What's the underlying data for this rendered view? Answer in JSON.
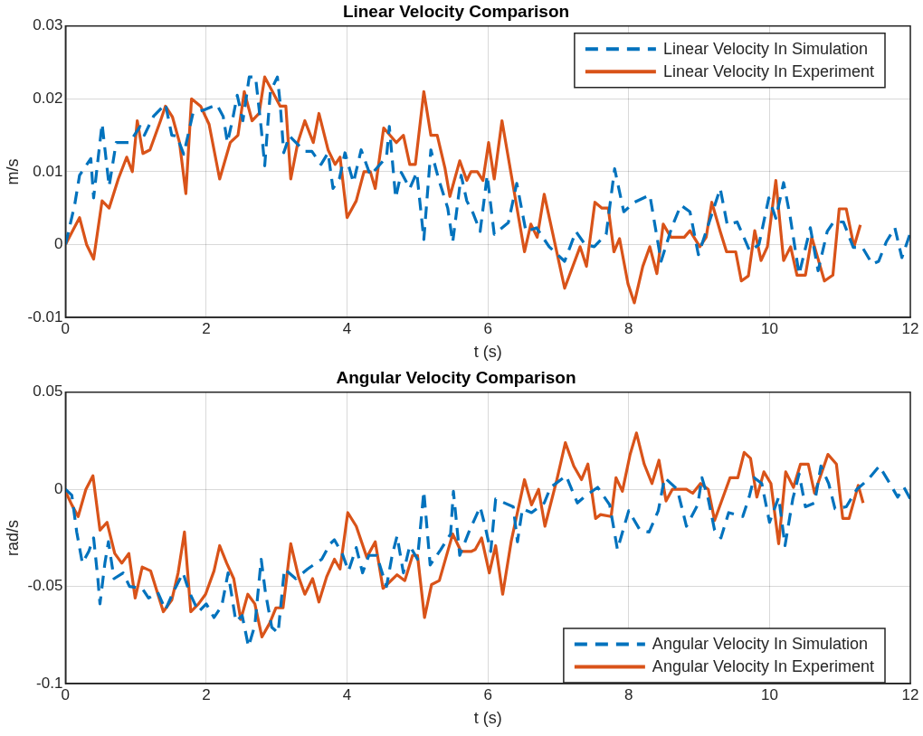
{
  "chart_data": [
    {
      "type": "line",
      "title": "Linear Velocity Comparison",
      "xlabel": "t (s)",
      "ylabel": "m/s",
      "xlim": [
        0,
        12
      ],
      "xticks": [
        0,
        2,
        4,
        6,
        8,
        10,
        12
      ],
      "ylim": [
        -0.01,
        0.03
      ],
      "yticks": [
        -0.01,
        0,
        0.01,
        0.02,
        0.03
      ],
      "grid": true,
      "legend": "top right",
      "marker": "none",
      "series": [
        {
          "name": "Linear Velocity In Simulation",
          "color": "#0072bd",
          "line_style": "dashed",
          "x": [
            0,
            0.13,
            0.2,
            0.36,
            0.4,
            0.52,
            0.62,
            0.72,
            0.91,
            1.06,
            1.12,
            1.25,
            1.42,
            1.51,
            1.58,
            1.68,
            1.81,
            1.97,
            2.15,
            2.24,
            2.3,
            2.37,
            2.44,
            2.52,
            2.61,
            2.7,
            2.78,
            2.83,
            2.87,
            2.91,
            3.01,
            3.05,
            3.1,
            3.18,
            3.4,
            3.5,
            3.63,
            3.73,
            3.8,
            3.89,
            3.97,
            4.09,
            4.2,
            4.33,
            4.56,
            4.6,
            4.69,
            4.77,
            4.89,
            4.99,
            5.09,
            5.19,
            5.3,
            5.43,
            5.5,
            5.62,
            5.7,
            5.79,
            5.89,
            5.99,
            6.09,
            6.29,
            6.41,
            6.54,
            6.69,
            6.87,
            7.09,
            7.25,
            7.38,
            7.51,
            7.68,
            7.8,
            7.93,
            8.08,
            8.3,
            8.46,
            8.61,
            8.74,
            8.87,
            8.99,
            9.1,
            9.3,
            9.4,
            9.54,
            9.72,
            9.85,
            9.99,
            10.09,
            10.2,
            10.29,
            10.42,
            10.58,
            10.69,
            10.82,
            10.91,
            11.05,
            11.19,
            11.32,
            11.46,
            11.55,
            11.66,
            11.78,
            11.88,
            12
          ],
          "values": [
            0,
            0.0054,
            0.0095,
            0.0118,
            0.0064,
            0.0166,
            0.008,
            0.014,
            0.014,
            0.0162,
            0.015,
            0.0176,
            0.0193,
            0.015,
            0.0149,
            0.0124,
            0.018,
            0.0185,
            0.0192,
            0.0176,
            0.014,
            0.017,
            0.0205,
            0.017,
            0.023,
            0.023,
            0.016,
            0.0108,
            0.016,
            0.021,
            0.023,
            0.0193,
            0.0126,
            0.0149,
            0.0128,
            0.0128,
            0.011,
            0.0126,
            0.0077,
            0.009,
            0.0126,
            0.0085,
            0.013,
            0.0095,
            0.012,
            0.0162,
            0.0064,
            0.0099,
            0.0077,
            0.0099,
            0.0007,
            0.013,
            0.009,
            0.005,
            0.0003,
            0.0095,
            0.006,
            0.0043,
            0.0018,
            0.0095,
            0.0014,
            0.003,
            0.0084,
            0.0018,
            0.0023,
            -0.0003,
            -0.0023,
            0.0018,
            0,
            -0.0003,
            0.0014,
            0.0104,
            0.0045,
            0.0058,
            0.0068,
            -0.0023,
            0.0023,
            0.0054,
            0.0045,
            -0.0014,
            0.0018,
            0.0077,
            0.0027,
            0.0031,
            -0.0009,
            0,
            0.0064,
            0.0036,
            0.0085,
            0.004,
            -0.0041,
            0.0023,
            -0.0036,
            0.0018,
            0.0031,
            0.0031,
            -0.0004,
            -0.0004,
            -0.0027,
            -0.0023,
            0.0004,
            0.0023,
            -0.0018,
            0.0016
          ]
        },
        {
          "name": "Linear Velocity In Experiment",
          "color": "#d95319",
          "line_style": "solid",
          "x": [
            0,
            0.2,
            0.3,
            0.4,
            0.52,
            0.62,
            0.75,
            0.87,
            0.95,
            1.02,
            1.1,
            1.2,
            1.35,
            1.42,
            1.52,
            1.62,
            1.71,
            1.79,
            1.92,
            2.04,
            2.19,
            2.34,
            2.45,
            2.54,
            2.65,
            2.75,
            2.83,
            2.94,
            3.05,
            3.13,
            3.2,
            3.3,
            3.4,
            3.52,
            3.6,
            3.73,
            3.83,
            3.9,
            4,
            4.13,
            4.24,
            4.33,
            4.4,
            4.52,
            4.7,
            4.8,
            4.89,
            4.97,
            5.09,
            5.19,
            5.28,
            5.39,
            5.46,
            5.6,
            5.7,
            5.76,
            5.85,
            5.93,
            6.01,
            6.09,
            6.2,
            6.52,
            6.61,
            6.7,
            6.8,
            7.09,
            7.31,
            7.4,
            7.52,
            7.62,
            7.71,
            7.79,
            7.87,
            7.99,
            8.08,
            8.2,
            8.3,
            8.4,
            8.49,
            8.6,
            8.79,
            8.87,
            9.01,
            9.1,
            9.18,
            9.3,
            9.39,
            9.52,
            9.6,
            9.7,
            9.79,
            9.88,
            9.97,
            10.09,
            10.2,
            10.3,
            10.39,
            10.51,
            10.6,
            10.78,
            10.9,
            10.99,
            11.09,
            11.2,
            11.29
          ],
          "values": [
            0,
            0.0037,
            0,
            -0.002,
            0.006,
            0.005,
            0.009,
            0.012,
            0.01,
            0.017,
            0.0125,
            0.013,
            0.017,
            0.019,
            0.0175,
            0.014,
            0.007,
            0.02,
            0.019,
            0.0165,
            0.009,
            0.014,
            0.015,
            0.021,
            0.017,
            0.018,
            0.023,
            0.021,
            0.019,
            0.019,
            0.009,
            0.014,
            0.017,
            0.014,
            0.018,
            0.013,
            0.011,
            0.012,
            0.0037,
            0.006,
            0.01,
            0.01,
            0.0077,
            0.016,
            0.014,
            0.015,
            0.011,
            0.011,
            0.021,
            0.015,
            0.015,
            0.0105,
            0.0066,
            0.0115,
            0.0088,
            0.01,
            0.01,
            0.0088,
            0.014,
            0.009,
            0.017,
            -0.001,
            0.0028,
            0.001,
            0.0069,
            -0.006,
            -0.0003,
            -0.003,
            0.0058,
            0.005,
            0.005,
            -0.001,
            0.0008,
            -0.0054,
            -0.008,
            -0.003,
            -0.0003,
            -0.004,
            0.0028,
            0.001,
            0.001,
            0.0019,
            -0.0003,
            0.001,
            0.0058,
            0.0018,
            -0.001,
            -0.001,
            -0.005,
            -0.0043,
            0.0019,
            -0.0022,
            -0.0003,
            0.0088,
            -0.0022,
            -0.0003,
            -0.0042,
            -0.0042,
            0.001,
            -0.005,
            -0.0042,
            0.0049,
            0.0049,
            -0.0003,
            0.0027
          ]
        }
      ]
    },
    {
      "type": "line",
      "title": "Angular Velocity Comparison",
      "xlabel": "t (s)",
      "ylabel": "rad/s",
      "xlim": [
        0,
        12
      ],
      "xticks": [
        0,
        2,
        4,
        6,
        8,
        10,
        12
      ],
      "ylim": [
        -0.1,
        0.05
      ],
      "yticks": [
        -0.1,
        -0.05,
        0,
        0.05
      ],
      "grid": true,
      "legend": "bottom right",
      "marker": "none",
      "series": [
        {
          "name": "Angular Velocity In Simulation",
          "color": "#0072bd",
          "line_style": "dashed",
          "x": [
            0,
            0.09,
            0.16,
            0.24,
            0.33,
            0.4,
            0.46,
            0.49,
            0.56,
            0.61,
            0.69,
            0.82,
            0.91,
            1.09,
            1.18,
            1.31,
            1.42,
            1.53,
            1.67,
            1.76,
            1.89,
            2,
            2.11,
            2.22,
            2.31,
            2.42,
            2.51,
            2.6,
            2.69,
            2.78,
            2.84,
            2.93,
            3.02,
            3.11,
            3.27,
            3.44,
            3.56,
            3.64,
            3.76,
            3.82,
            3.93,
            4.02,
            4.13,
            4.22,
            4.31,
            4.42,
            4.56,
            4.64,
            4.71,
            4.8,
            4.89,
            5,
            5.09,
            5.18,
            5.33,
            5.47,
            5.51,
            5.6,
            5.73,
            5.89,
            5.96,
            6.04,
            6.11,
            6.36,
            6.42,
            6.49,
            6.62,
            6.8,
            6.89,
            7.11,
            7.27,
            7.4,
            7.56,
            7.73,
            7.84,
            8,
            8.16,
            8.29,
            8.42,
            8.51,
            8.69,
            8.82,
            8.98,
            9.04,
            9.13,
            9.22,
            9.31,
            9.42,
            9.62,
            9.71,
            9.78,
            9.89,
            10,
            10.13,
            10.22,
            10.33,
            10.42,
            10.51,
            10.64,
            10.73,
            10.84,
            10.93,
            11.09,
            11.24,
            11.4,
            11.56,
            11.71,
            11.82,
            11.91,
            12
          ],
          "values": [
            0,
            -0.003,
            -0.022,
            -0.038,
            -0.032,
            -0.025,
            -0.046,
            -0.059,
            -0.038,
            -0.027,
            -0.046,
            -0.043,
            -0.05,
            -0.051,
            -0.056,
            -0.053,
            -0.062,
            -0.053,
            -0.043,
            -0.053,
            -0.063,
            -0.059,
            -0.066,
            -0.06,
            -0.043,
            -0.068,
            -0.065,
            -0.081,
            -0.07,
            -0.036,
            -0.053,
            -0.071,
            -0.074,
            -0.041,
            -0.046,
            -0.041,
            -0.038,
            -0.036,
            -0.028,
            -0.026,
            -0.033,
            -0.042,
            -0.03,
            -0.043,
            -0.034,
            -0.034,
            -0.05,
            -0.034,
            -0.024,
            -0.043,
            -0.029,
            -0.036,
            -0.001,
            -0.039,
            -0.031,
            -0.023,
            -0.001,
            -0.034,
            -0.022,
            -0.009,
            -0.019,
            -0.032,
            -0.005,
            -0.009,
            -0.027,
            -0.01,
            -0.012,
            -0.007,
            0.001,
            0.007,
            -0.007,
            -0.003,
            0.001,
            -0.008,
            -0.031,
            -0.011,
            -0.021,
            -0.022,
            -0.011,
            0.006,
            0,
            -0.019,
            -0.008,
            0.006,
            -0.005,
            -0.021,
            -0.025,
            -0.012,
            -0.014,
            -0.004,
            0.006,
            0.003,
            -0.017,
            -0.004,
            -0.029,
            -0.005,
            0.008,
            -0.009,
            -0.007,
            0.012,
            0.003,
            -0.01,
            -0.009,
            0,
            0.005,
            0.012,
            0.003,
            -0.004,
            0.001,
            -0.005
          ]
        },
        {
          "name": "Angular Velocity In Experiment",
          "color": "#d95319",
          "line_style": "solid",
          "x": [
            0,
            0.09,
            0.18,
            0.29,
            0.39,
            0.49,
            0.59,
            0.7,
            0.8,
            0.9,
            0.99,
            1.09,
            1.21,
            1.39,
            1.51,
            1.6,
            1.69,
            1.78,
            1.89,
            1.99,
            2.11,
            2.19,
            2.29,
            2.39,
            2.49,
            2.59,
            2.69,
            2.79,
            2.9,
            2.99,
            3.09,
            3.2,
            3.31,
            3.4,
            3.51,
            3.6,
            3.71,
            3.82,
            3.9,
            4.01,
            4.13,
            4.28,
            4.4,
            4.51,
            4.71,
            4.82,
            4.93,
            5,
            5.1,
            5.2,
            5.31,
            5.5,
            5.62,
            5.76,
            5.82,
            5.91,
            6.02,
            6.11,
            6.21,
            6.33,
            6.52,
            6.62,
            6.72,
            6.81,
            6.98,
            7.1,
            7.22,
            7.33,
            7.42,
            7.53,
            7.6,
            7.75,
            7.82,
            7.91,
            8.02,
            8.11,
            8.22,
            8.33,
            8.43,
            8.53,
            8.62,
            8.82,
            8.91,
            9.02,
            9.13,
            9.22,
            9.44,
            9.55,
            9.64,
            9.73,
            9.82,
            9.92,
            10.02,
            10.13,
            10.23,
            10.34,
            10.44,
            10.55,
            10.64,
            10.83,
            10.95,
            11.04,
            11.13,
            11.26,
            11.33
          ],
          "values": [
            -0.001,
            -0.008,
            -0.014,
            0,
            0.007,
            -0.021,
            -0.017,
            -0.033,
            -0.038,
            -0.033,
            -0.056,
            -0.04,
            -0.042,
            -0.063,
            -0.057,
            -0.043,
            -0.022,
            -0.063,
            -0.059,
            -0.054,
            -0.042,
            -0.029,
            -0.038,
            -0.046,
            -0.067,
            -0.054,
            -0.059,
            -0.076,
            -0.069,
            -0.061,
            -0.061,
            -0.028,
            -0.045,
            -0.054,
            -0.046,
            -0.058,
            -0.045,
            -0.036,
            -0.041,
            -0.012,
            -0.019,
            -0.035,
            -0.027,
            -0.051,
            -0.044,
            -0.047,
            -0.034,
            -0.034,
            -0.066,
            -0.049,
            -0.047,
            -0.023,
            -0.032,
            -0.032,
            -0.031,
            -0.025,
            -0.043,
            -0.029,
            -0.054,
            -0.027,
            0.005,
            -0.008,
            0,
            -0.019,
            0.005,
            0.024,
            0.012,
            0.005,
            0.013,
            -0.015,
            -0.013,
            -0.014,
            0.006,
            -0.001,
            0.018,
            0.029,
            0.013,
            0.003,
            0.015,
            -0.006,
            0,
            0,
            -0.002,
            0.003,
            0,
            -0.016,
            0.006,
            0.006,
            0.019,
            0.016,
            -0.004,
            0.009,
            0.003,
            -0.028,
            0.009,
            0.001,
            0.013,
            0.013,
            -0.002,
            0.018,
            0.013,
            -0.015,
            -0.015,
            0.002,
            -0.007
          ]
        }
      ]
    }
  ]
}
